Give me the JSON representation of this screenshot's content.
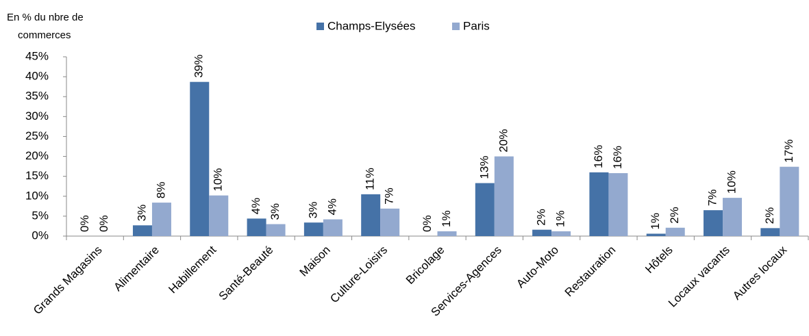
{
  "chart_data": {
    "type": "bar",
    "y_axis_label": [
      "En % du nbre de",
      "commerces"
    ],
    "categories": [
      "Grands Magasins",
      "Alimentaire",
      "Habillement",
      "Santé-Beauté",
      "Maison",
      "Culture-Loisirs",
      "Bricolage",
      "Services-Agences",
      "Auto-Moto",
      "Restauration",
      "Hôtels",
      "Locaux vacants",
      "Autres locaux"
    ],
    "series": [
      {
        "name": "Champs-Elysées",
        "color": "#4572a7",
        "values": [
          0,
          2.7,
          38.7,
          4.4,
          3.4,
          10.5,
          0,
          13.3,
          1.6,
          16,
          0.6,
          6.5,
          2.0
        ],
        "value_labels": [
          "0%",
          "3%",
          "39%",
          "4%",
          "3%",
          "11%",
          "0%",
          "13%",
          "2%",
          "16%",
          "1%",
          "7%",
          "2%"
        ]
      },
      {
        "name": "Paris",
        "color": "#93a9cf",
        "values": [
          0,
          8.4,
          10.2,
          3.0,
          4.2,
          6.9,
          1.2,
          20,
          1.2,
          15.8,
          2.1,
          9.6,
          17.4
        ],
        "value_labels": [
          "0%",
          "8%",
          "10%",
          "3%",
          "4%",
          "7%",
          "1%",
          "20%",
          "1%",
          "16%",
          "2%",
          "10%",
          "17%"
        ]
      }
    ],
    "ylim": [
      0,
      45
    ],
    "yticks": [
      {
        "value": 0,
        "label": "0%"
      },
      {
        "value": 5,
        "label": "5%"
      },
      {
        "value": 10,
        "label": "10%"
      },
      {
        "value": 15,
        "label": "15%"
      },
      {
        "value": 20,
        "label": "20%"
      },
      {
        "value": 25,
        "label": "25%"
      },
      {
        "value": 30,
        "label": "30%"
      },
      {
        "value": 35,
        "label": "35%"
      },
      {
        "value": 40,
        "label": "40%"
      },
      {
        "value": 45,
        "label": "45%"
      }
    ],
    "legend": "top"
  }
}
